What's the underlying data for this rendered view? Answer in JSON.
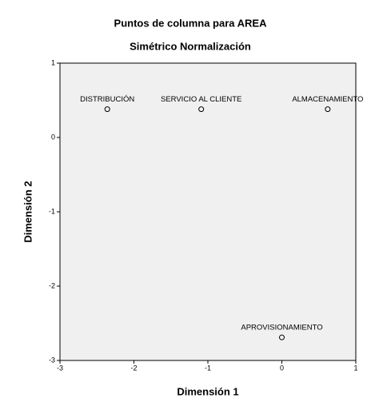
{
  "chart_data": {
    "type": "scatter",
    "title": "Puntos de columna para AREA",
    "subtitle": "Simétrico Normalización",
    "x_label": "Dimensión 1",
    "y_label": "Dimensión 2",
    "labels": [
      "DISTRIBUCIÓN",
      "SERVICIO AL CLIENTE",
      "ALMACENAMIENTO",
      "APROVISIONAMIENTO"
    ],
    "x": [
      -2.36,
      -1.09,
      0.62,
      0.0
    ],
    "values": [
      0.38,
      0.38,
      0.38,
      -2.69
    ],
    "color": "#000000",
    "xlim": [
      -3,
      1
    ],
    "ylim": [
      -3,
      1
    ],
    "xticks": [
      -3,
      -2,
      -1,
      0,
      1
    ],
    "yticks": [
      -3,
      -2,
      -1,
      0,
      1
    ],
    "grid": false
  }
}
